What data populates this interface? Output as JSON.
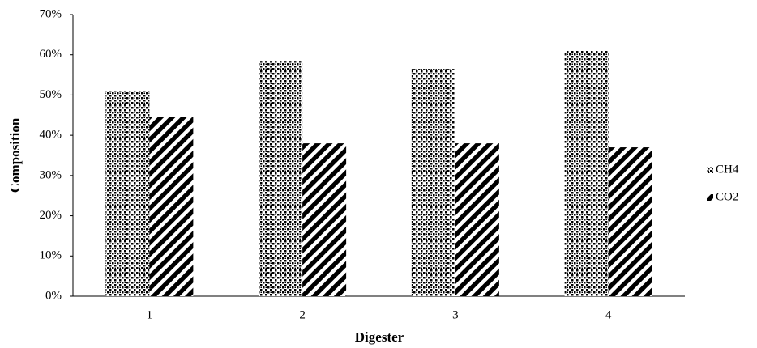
{
  "chart_data": {
    "type": "bar",
    "x_label": "Digester",
    "y_label": "Composition",
    "categories": [
      "1",
      "2",
      "3",
      "4"
    ],
    "series": [
      {
        "name": "CH4",
        "color": "#000000",
        "pattern": "dots",
        "values": [
          51,
          58.5,
          56.5,
          61
        ]
      },
      {
        "name": "CO2",
        "color": "#000000",
        "pattern": "stripes",
        "values": [
          44.5,
          38,
          38,
          37
        ]
      }
    ],
    "ylim": [
      0,
      70
    ],
    "yticks": [
      {
        "value": 0,
        "label": "0%"
      },
      {
        "value": 10,
        "label": "10%"
      },
      {
        "value": 20,
        "label": "20%"
      },
      {
        "value": 30,
        "label": "30%"
      },
      {
        "value": 40,
        "label": "40%"
      },
      {
        "value": 50,
        "label": "50%"
      },
      {
        "value": 60,
        "label": "60%"
      },
      {
        "value": 70,
        "label": "70%"
      }
    ],
    "grid": false,
    "legend": "right"
  }
}
